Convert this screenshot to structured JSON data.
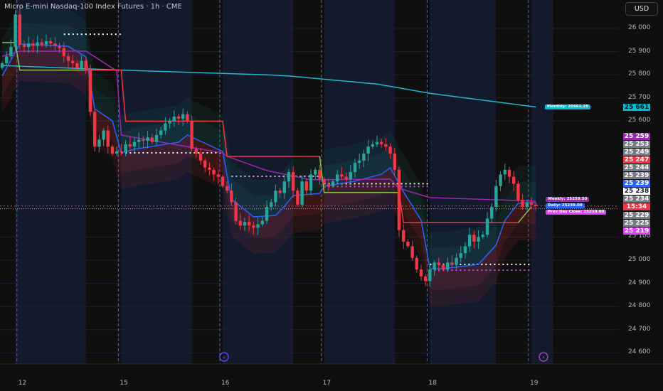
{
  "header": {
    "title": "Micro E-mini Nasdaq-100 Index Futures · 1h · CME",
    "currency_button": "USD"
  },
  "colors": {
    "up": "#26a69a",
    "down": "#f23645",
    "background": "#0f0f0f",
    "session_shade": "#121a2b",
    "monthly": "#22b8cf",
    "vwap": "#2962ff",
    "weekly": "#9c27b0",
    "prior_red": "#f23645",
    "prior_green": "#8bc34a"
  },
  "chart_data": {
    "type": "candlestick",
    "title": "Micro E-mini Nasdaq-100 Index Futures · 1h · CME",
    "ylim": [
      24550,
      26150
    ],
    "y_ticks": [
      26000,
      25900,
      25800,
      25700,
      25600,
      25100,
      25000,
      24900,
      24800,
      24700,
      24600
    ],
    "x_ticks": [
      {
        "label": "12",
        "bar": 4
      },
      {
        "label": "15",
        "bar": 27
      },
      {
        "label": "16",
        "bar": 50
      },
      {
        "label": "17",
        "bar": 73
      },
      {
        "label": "18",
        "bar": 97
      },
      {
        "label": "19",
        "bar": 120
      }
    ],
    "closes": [
      25850,
      25880,
      25920,
      26060,
      25930,
      25920,
      25935,
      25925,
      25940,
      25930,
      25945,
      25935,
      25925,
      25915,
      25880,
      25860,
      25850,
      25830,
      25860,
      25820,
      25640,
      25490,
      25520,
      25560,
      25490,
      25460,
      25470,
      25465,
      25500,
      25490,
      25510,
      25520,
      25515,
      25530,
      25510,
      25540,
      25560,
      25590,
      25600,
      25620,
      25610,
      25630,
      25600,
      25480,
      25460,
      25430,
      25400,
      25390,
      25370,
      25360,
      25320,
      25300,
      25250,
      25170,
      25150,
      25165,
      25150,
      25140,
      25155,
      25170,
      25230,
      25250,
      25300,
      25290,
      25340,
      25380,
      25300,
      25240,
      25340,
      25300,
      25370,
      25390,
      25350,
      25330,
      25320,
      25340,
      25370,
      25360,
      25350,
      25380,
      25420,
      25430,
      25460,
      25490,
      25500,
      25510,
      25500,
      25490,
      25460,
      25390,
      25130,
      25080,
      25060,
      25010,
      24960,
      24930,
      24910,
      24960,
      24990,
      24980,
      24960,
      24990,
      24980,
      25010,
      25030,
      25060,
      25110,
      25080,
      25100,
      25110,
      25180,
      25230,
      25320,
      25370,
      25390,
      25360,
      25330,
      25260,
      25230,
      25250,
      25240,
      25234
    ],
    "series": [
      {
        "key": "monthly",
        "points": [
          [
            0,
            25840
          ],
          [
            27,
            25820
          ],
          [
            60,
            25800
          ],
          [
            65,
            25795
          ],
          [
            85,
            25760
          ],
          [
            97,
            25720
          ],
          [
            121,
            25661
          ]
        ]
      },
      {
        "key": "vwap",
        "points": [
          [
            0,
            25795
          ],
          [
            4,
            25933
          ],
          [
            15,
            25923
          ],
          [
            19,
            25877
          ],
          [
            21,
            25653
          ],
          [
            25,
            25601
          ],
          [
            27,
            25463
          ],
          [
            30,
            25479
          ],
          [
            40,
            25509
          ],
          [
            42,
            25540
          ],
          [
            50,
            25469
          ],
          [
            52,
            25264
          ],
          [
            57,
            25187
          ],
          [
            62,
            25193
          ],
          [
            64,
            25233
          ],
          [
            66,
            25279
          ],
          [
            72,
            25288
          ],
          [
            73,
            25319
          ],
          [
            80,
            25341
          ],
          [
            86,
            25371
          ],
          [
            88,
            25399
          ],
          [
            91,
            25295
          ],
          [
            95,
            25172
          ],
          [
            97,
            24963
          ],
          [
            100,
            24963
          ],
          [
            108,
            24982
          ],
          [
            112,
            25065
          ],
          [
            114,
            25172
          ],
          [
            117,
            25246
          ],
          [
            121,
            25249
          ]
        ]
      },
      {
        "key": "weekly",
        "points": [
          [
            0,
            25880
          ],
          [
            4,
            25902
          ],
          [
            19,
            25902
          ],
          [
            26,
            25816
          ],
          [
            27,
            25540
          ],
          [
            50,
            25463
          ],
          [
            51,
            25448
          ],
          [
            60,
            25387
          ],
          [
            70,
            25347
          ],
          [
            88,
            25350
          ],
          [
            90,
            25310
          ],
          [
            97,
            25270
          ],
          [
            121,
            25255
          ]
        ]
      },
      {
        "key": "prior_red",
        "points": [
          [
            19,
            25820
          ],
          [
            27,
            25820
          ],
          [
            28,
            25600
          ],
          [
            50,
            25600
          ],
          [
            51,
            25448
          ],
          [
            72,
            25448
          ]
        ]
      },
      {
        "key": "prior_red",
        "points": [
          [
            90,
            25292
          ],
          [
            91,
            25162
          ],
          [
            117,
            25162
          ]
        ]
      },
      {
        "key": "prior_green",
        "points": [
          [
            0,
            25939
          ],
          [
            3,
            25939
          ],
          [
            4,
            25820
          ],
          [
            19,
            25820
          ]
        ]
      },
      {
        "key": "prior_green",
        "points": [
          [
            72,
            25448
          ],
          [
            73,
            25292
          ],
          [
            90,
            25292
          ]
        ]
      },
      {
        "key": "prior_green",
        "points": [
          [
            117,
            25162
          ],
          [
            120,
            25230
          ]
        ]
      }
    ],
    "dotted_levels": [
      {
        "from": 14,
        "to": 27,
        "price": 25975,
        "color": "#ffffff"
      },
      {
        "from": 27,
        "to": 50,
        "price": 25463,
        "color": "#ffffff"
      },
      {
        "from": 52,
        "to": 72,
        "price": 25362,
        "color": "#e0b0ff"
      },
      {
        "from": 73,
        "to": 97,
        "price": 25330,
        "color": "#ffffff"
      },
      {
        "from": 73,
        "to": 97,
        "price": 25318,
        "color": "#c050e0"
      },
      {
        "from": 97,
        "to": 120,
        "price": 24982,
        "color": "#ffffff"
      },
      {
        "from": 97,
        "to": 120,
        "price": 24957,
        "color": "#c050e0"
      }
    ],
    "session_shading": [
      [
        3,
        19
      ],
      [
        27,
        43
      ],
      [
        50,
        66
      ],
      [
        73,
        89
      ],
      [
        97,
        112
      ],
      [
        120,
        125
      ]
    ],
    "price_labels": [
      {
        "text": "25 661",
        "price": 25661,
        "bg": "#00bcd4",
        "fg": "#0f0f0f"
      },
      {
        "text": "25 259",
        "bg": "#9c27b0",
        "fg": "#ffffff"
      },
      {
        "text": "25 253",
        "bg": "#787b86",
        "fg": "#ffffff"
      },
      {
        "text": "25 249",
        "bg": "#787b86",
        "fg": "#ffffff"
      },
      {
        "text": "25 247",
        "bg": "#f23645",
        "fg": "#ffffff"
      },
      {
        "text": "25 244",
        "bg": "#787b86",
        "fg": "#ffffff"
      },
      {
        "text": "25 239",
        "bg": "#787b86",
        "fg": "#ffffff"
      },
      {
        "text": "25 239",
        "bg": "#2962ff",
        "fg": "#ffffff"
      },
      {
        "text": "25 238",
        "bg": "#ffffff",
        "fg": "#131722"
      },
      {
        "text": "25 234",
        "bg": "#787b86",
        "fg": "#ffffff"
      },
      {
        "text": "15:34",
        "bg": "#f23645",
        "fg": "#ffffff"
      },
      {
        "text": "25 229",
        "bg": "#787b86",
        "fg": "#ffffff"
      },
      {
        "text": "25 225",
        "bg": "#787b86",
        "fg": "#ffffff"
      },
      {
        "text": "25 219",
        "bg": "#e040fb",
        "fg": "#ffffff"
      }
    ],
    "annotations": [
      {
        "text": "Monthly: 25661.25",
        "price": 25661,
        "bg": "#00bcd4"
      },
      {
        "text": "Weekly: 25259.50",
        "price": 25262,
        "bg": "#9c27b0"
      },
      {
        "text": "Daily: 25239.00",
        "price": 25234,
        "bg": "#2962ff"
      },
      {
        "text": "Prev Day Close: 25219.00",
        "price": 25206,
        "bg": "#e040fb"
      }
    ],
    "event_icons": [
      {
        "name": "dividend-arrow",
        "bar": 50
      },
      {
        "name": "lightning",
        "bar": 122
      }
    ]
  }
}
